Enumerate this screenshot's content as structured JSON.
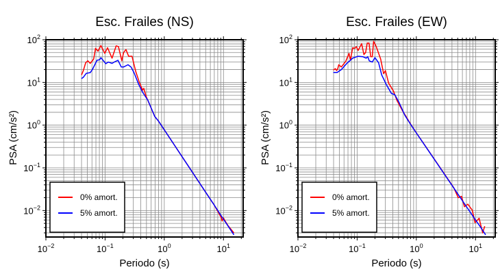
{
  "chart_data": [
    {
      "type": "line",
      "title": "Esc. Frailes (NS)",
      "xlabel": "Periodo (s)",
      "ylabel": "PSA (cm/s²)",
      "xscale": "log",
      "yscale": "log",
      "xlim": [
        0.01,
        21.5
      ],
      "ylim": [
        0.0024,
        100
      ],
      "grid": true,
      "legend_position": "bottom-left",
      "x_ticks": [
        {
          "base": "10",
          "exp": "−2"
        },
        {
          "base": "10",
          "exp": "−1"
        },
        {
          "base": "10",
          "exp": "0"
        },
        {
          "base": "10",
          "exp": "1"
        }
      ],
      "y_ticks": [
        {
          "base": "10",
          "exp": "2"
        },
        {
          "base": "10",
          "exp": "1"
        },
        {
          "base": "10",
          "exp": "0"
        },
        {
          "base": "10",
          "exp": "−1"
        },
        {
          "base": "10",
          "exp": "−2"
        }
      ],
      "series": [
        {
          "name": "0% amort.",
          "color": "#ff0000",
          "x": [
            0.04,
            0.043,
            0.047,
            0.051,
            0.056,
            0.064,
            0.069,
            0.076,
            0.085,
            0.099,
            0.11,
            0.131,
            0.154,
            0.168,
            0.192,
            0.205,
            0.225,
            0.25,
            0.285,
            0.33,
            0.38,
            0.43,
            0.45,
            0.49,
            0.69,
            0.8,
            1,
            1.5,
            2,
            3,
            5,
            7,
            9.2,
            9.5,
            10,
            10.5,
            12,
            15
          ],
          "y": [
            15,
            19,
            29,
            32,
            28,
            35,
            63,
            54,
            73,
            48,
            65,
            37,
            72,
            69,
            32,
            50,
            59,
            41,
            41,
            18,
            10,
            6.6,
            7.3,
            4.8,
            1.6,
            1.24,
            0.78,
            0.332,
            0.182,
            0.078,
            0.0268,
            0.0133,
            0.0068,
            0.0057,
            0.0067,
            0.0059,
            0.0044,
            0.003
          ]
        },
        {
          "name": "5% amort.",
          "color": "#0000ff",
          "x": [
            0.04,
            0.043,
            0.048,
            0.056,
            0.061,
            0.073,
            0.081,
            0.085,
            0.103,
            0.113,
            0.131,
            0.143,
            0.165,
            0.188,
            0.205,
            0.244,
            0.274,
            0.31,
            0.37,
            0.43,
            0.53,
            0.69,
            0.8,
            1,
            1.5,
            2,
            3,
            5,
            7,
            9.3,
            12,
            15
          ],
          "y": [
            12.3,
            13.2,
            16.3,
            17,
            20,
            33,
            34,
            38,
            27.5,
            30,
            28,
            30,
            33,
            23,
            23,
            26,
            23,
            16.6,
            9,
            5.9,
            3.8,
            1.6,
            1.24,
            0.78,
            0.332,
            0.182,
            0.078,
            0.0268,
            0.0133,
            0.0073,
            0.0043,
            0.0027
          ]
        }
      ]
    },
    {
      "type": "line",
      "title": "Esc. Frailes (EW)",
      "xlabel": "Periodo (s)",
      "ylabel": "PSA (cm/s²)",
      "xscale": "log",
      "yscale": "log",
      "xlim": [
        0.01,
        21.5
      ],
      "ylim": [
        0.0024,
        100
      ],
      "grid": true,
      "legend_position": "bottom-left",
      "x_ticks": [
        {
          "base": "10",
          "exp": "−2"
        },
        {
          "base": "10",
          "exp": "−1"
        },
        {
          "base": "10",
          "exp": "0"
        },
        {
          "base": "10",
          "exp": "1"
        }
      ],
      "y_ticks": [
        {
          "base": "10",
          "exp": "2"
        },
        {
          "base": "10",
          "exp": "1"
        },
        {
          "base": "10",
          "exp": "0"
        },
        {
          "base": "10",
          "exp": "−1"
        },
        {
          "base": "10",
          "exp": "−2"
        }
      ],
      "series": [
        {
          "name": "0% amort.",
          "color": "#ff0000",
          "x": [
            0.0395,
            0.043,
            0.045,
            0.047,
            0.049,
            0.054,
            0.064,
            0.073,
            0.077,
            0.084,
            0.091,
            0.097,
            0.104,
            0.119,
            0.13,
            0.139,
            0.148,
            0.159,
            0.17,
            0.18,
            0.19,
            0.21,
            0.25,
            0.28,
            0.3,
            0.34,
            0.41,
            0.47,
            0.58,
            0.67,
            0.8,
            1,
            1.5,
            2,
            3,
            4.3,
            5.1,
            5.8,
            6.5,
            7.4,
            8.8,
            9.8,
            11.5,
            13.2,
            14.3
          ],
          "y": [
            19.5,
            21,
            19,
            21,
            26,
            23,
            31,
            48,
            33,
            65,
            63,
            69,
            56,
            81,
            45,
            50,
            83,
            83,
            40,
            40,
            92,
            69,
            35,
            16,
            19,
            9.6,
            6.3,
            3.8,
            2.2,
            1.6,
            1.06,
            0.66,
            0.29,
            0.162,
            0.071,
            0.034,
            0.02,
            0.0215,
            0.0123,
            0.0141,
            0.0102,
            0.0052,
            0.0066,
            0.003,
            0.0043
          ]
        },
        {
          "name": "5% amort.",
          "color": "#0000ff",
          "x": [
            0.0395,
            0.046,
            0.054,
            0.067,
            0.084,
            0.104,
            0.125,
            0.142,
            0.151,
            0.16,
            0.18,
            0.2,
            0.23,
            0.26,
            0.31,
            0.38,
            0.43,
            0.51,
            0.64,
            0.8,
            1,
            1.5,
            2,
            3,
            5,
            7,
            10,
            12,
            14.8
          ],
          "y": [
            17.2,
            17.2,
            20,
            28,
            37,
            41,
            40,
            37,
            40,
            32,
            30,
            38,
            29,
            15,
            9,
            5.5,
            5.2,
            3.4,
            1.7,
            1.04,
            0.658,
            0.288,
            0.16,
            0.07,
            0.0247,
            0.0124,
            0.006,
            0.0042,
            0.0027
          ]
        }
      ]
    }
  ]
}
